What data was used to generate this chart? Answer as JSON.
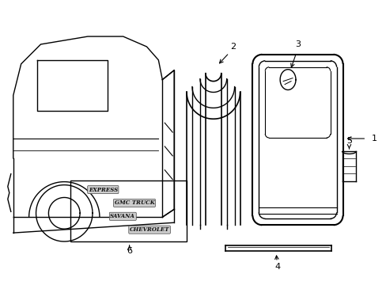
{
  "bg_color": "#ffffff",
  "line_color": "#000000",
  "figsize": [
    4.89,
    3.6
  ],
  "dpi": 100,
  "badge_texts": [
    "EXPRESS",
    "GMC TRUCK",
    "SAVANA",
    "CHEVROLET"
  ]
}
